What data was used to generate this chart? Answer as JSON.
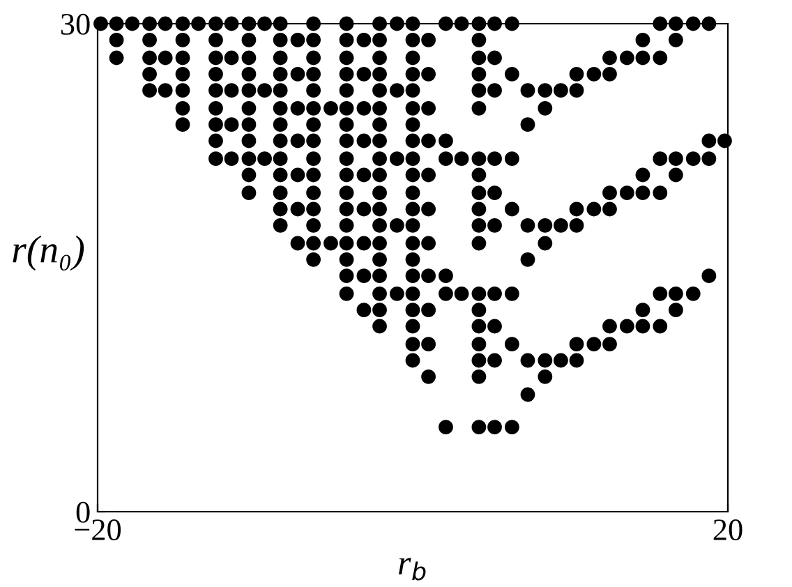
{
  "chart_data": {
    "type": "scatter",
    "xlabel": "r$_{b}$",
    "ylabel": "r(n₀)",
    "marker": "circle",
    "grid": false,
    "xlim": [
      -20,
      20
    ],
    "ylim": [
      0,
      30
    ],
    "xticks": [
      {
        "value": -20,
        "label": "−20"
      },
      20
    ],
    "yticks": [
      0,
      30
    ],
    "series": [
      {
        "color": "#000000",
        "x": [
          -19.8,
          -18.8,
          -17.8,
          -16.7,
          -15.7,
          -14.6,
          -13.6,
          -12.5,
          -11.5,
          -10.4,
          -9.4,
          -8.4,
          -6.3,
          -4.2,
          -2.1,
          -1.0,
          0.0,
          2.1,
          3.1,
          4.2,
          5.2,
          6.3,
          15.7,
          16.7,
          17.8,
          18.8
        ],
        "values": [
          30,
          30,
          30,
          30,
          30,
          30,
          30,
          30,
          30,
          30,
          30,
          30,
          30,
          30,
          30,
          30,
          30,
          30,
          30,
          30,
          30,
          30,
          30,
          30,
          30,
          30
        ]
      },
      {
        "color": "#000000",
        "x": [
          -18.8,
          -16.7,
          -14.6,
          -12.5,
          -10.4,
          -8.4,
          -7.3,
          -6.3,
          -4.2,
          -3.1,
          -2.1,
          0.0,
          1.0,
          4.2,
          14.6,
          16.7
        ],
        "values": [
          29.0,
          29.0,
          29.0,
          29.0,
          29.0,
          29.0,
          29.0,
          29.0,
          29.0,
          29.0,
          29.0,
          29.0,
          29.0,
          29.0,
          29.0,
          29.0
        ]
      },
      {
        "color": "#000000",
        "x": [
          -18.8,
          -16.7,
          -15.7,
          -14.6,
          -12.5,
          -11.5,
          -10.4,
          -8.4,
          -6.3,
          -4.2,
          -2.1,
          0.0,
          4.2,
          5.2,
          12.5,
          13.6,
          14.6,
          15.7
        ],
        "values": [
          27.9,
          27.9,
          27.9,
          27.9,
          27.9,
          27.9,
          27.9,
          27.9,
          27.9,
          27.9,
          27.9,
          27.9,
          27.9,
          27.9,
          27.9,
          27.9,
          27.9,
          27.9
        ]
      },
      {
        "color": "#000000",
        "x": [
          -16.7,
          -14.6,
          -12.5,
          -10.4,
          -8.4,
          -7.3,
          -6.3,
          -4.2,
          -3.1,
          -2.1,
          0.0,
          1.0,
          4.2,
          6.3,
          10.4,
          11.5,
          12.5
        ],
        "values": [
          26.9,
          26.9,
          26.9,
          26.9,
          26.9,
          26.9,
          26.9,
          26.9,
          26.9,
          26.9,
          26.9,
          26.9,
          26.9,
          26.9,
          26.9,
          26.9,
          26.9
        ]
      },
      {
        "color": "#000000",
        "x": [
          -16.7,
          -15.7,
          -14.6,
          -12.5,
          -11.5,
          -10.4,
          -9.4,
          -8.4,
          -6.3,
          -4.2,
          -2.1,
          -1.0,
          0.0,
          4.2,
          5.2,
          7.3,
          8.4,
          9.4,
          10.4
        ],
        "values": [
          25.9,
          25.9,
          25.9,
          25.9,
          25.9,
          25.9,
          25.9,
          25.9,
          25.9,
          25.9,
          25.9,
          25.9,
          25.9,
          25.9,
          25.9,
          25.9,
          25.9,
          25.9,
          25.9
        ]
      },
      {
        "color": "#000000",
        "x": [
          -14.6,
          -12.5,
          -10.4,
          -8.4,
          -7.3,
          -6.3,
          -5.2,
          -4.2,
          -3.1,
          -2.1,
          0.0,
          1.0,
          4.2,
          8.4
        ],
        "values": [
          24.8,
          24.8,
          24.8,
          24.8,
          24.8,
          24.8,
          24.8,
          24.8,
          24.8,
          24.8,
          24.8,
          24.8,
          24.8,
          24.8
        ]
      },
      {
        "color": "#000000",
        "x": [
          -14.6,
          -12.5,
          -11.5,
          -10.4,
          -8.4,
          -6.3,
          -4.2,
          -2.1,
          0.0,
          7.3
        ],
        "values": [
          23.8,
          23.8,
          23.8,
          23.8,
          23.8,
          23.8,
          23.8,
          23.8,
          23.8,
          23.8
        ]
      },
      {
        "color": "#000000",
        "x": [
          -12.5,
          -10.4,
          -8.4,
          -7.3,
          -6.3,
          -4.2,
          -3.1,
          -2.1,
          0.0,
          1.0,
          2.1,
          18.8,
          19.8
        ],
        "values": [
          22.8,
          22.8,
          22.8,
          22.8,
          22.8,
          22.8,
          22.8,
          22.8,
          22.8,
          22.8,
          22.8,
          22.8,
          22.8
        ]
      },
      {
        "color": "#000000",
        "x": [
          -12.5,
          -11.5,
          -10.4,
          -9.4,
          -8.4,
          -6.3,
          -4.2,
          -2.1,
          -1.0,
          0.0,
          2.1,
          3.1,
          4.2,
          5.2,
          6.3,
          15.7,
          16.7,
          17.8,
          18.8
        ],
        "values": [
          21.7,
          21.7,
          21.7,
          21.7,
          21.7,
          21.7,
          21.7,
          21.7,
          21.7,
          21.7,
          21.7,
          21.7,
          21.7,
          21.7,
          21.7,
          21.7,
          21.7,
          21.7,
          21.7
        ]
      },
      {
        "color": "#000000",
        "x": [
          -10.4,
          -8.4,
          -7.3,
          -6.3,
          -4.2,
          -3.1,
          -2.1,
          0.0,
          1.0,
          4.2,
          14.6,
          16.7
        ],
        "values": [
          20.7,
          20.7,
          20.7,
          20.7,
          20.7,
          20.7,
          20.7,
          20.7,
          20.7,
          20.7,
          20.7,
          20.7
        ]
      },
      {
        "color": "#000000",
        "x": [
          -10.4,
          -8.4,
          -6.3,
          -4.2,
          -2.1,
          0.0,
          4.2,
          5.2,
          12.5,
          13.6,
          14.6,
          15.7
        ],
        "values": [
          19.6,
          19.6,
          19.6,
          19.6,
          19.6,
          19.6,
          19.6,
          19.6,
          19.6,
          19.6,
          19.6,
          19.6
        ]
      },
      {
        "color": "#000000",
        "x": [
          -8.4,
          -7.3,
          -6.3,
          -4.2,
          -3.1,
          -2.1,
          0.0,
          1.0,
          4.2,
          6.3,
          10.4,
          11.5,
          12.5
        ],
        "values": [
          18.6,
          18.6,
          18.6,
          18.6,
          18.6,
          18.6,
          18.6,
          18.6,
          18.6,
          18.6,
          18.6,
          18.6,
          18.6
        ]
      },
      {
        "color": "#000000",
        "x": [
          -8.4,
          -6.3,
          -4.2,
          -2.1,
          -1.0,
          0.0,
          4.2,
          5.2,
          7.3,
          8.4,
          9.4,
          10.4
        ],
        "values": [
          17.6,
          17.6,
          17.6,
          17.6,
          17.6,
          17.6,
          17.6,
          17.6,
          17.6,
          17.6,
          17.6,
          17.6
        ]
      },
      {
        "color": "#000000",
        "x": [
          -7.3,
          -6.3,
          -5.2,
          -4.2,
          -3.1,
          -2.1,
          0.0,
          1.0,
          4.2,
          8.4
        ],
        "values": [
          16.5,
          16.5,
          16.5,
          16.5,
          16.5,
          16.5,
          16.5,
          16.5,
          16.5,
          16.5
        ]
      },
      {
        "color": "#000000",
        "x": [
          -6.3,
          -4.2,
          -2.1,
          0.0,
          7.3
        ],
        "values": [
          15.5,
          15.5,
          15.5,
          15.5,
          15.5
        ]
      },
      {
        "color": "#000000",
        "x": [
          -4.2,
          -3.1,
          -2.1,
          0.0,
          1.0,
          2.1,
          18.8
        ],
        "values": [
          14.5,
          14.5,
          14.5,
          14.5,
          14.5,
          14.5,
          14.5
        ]
      },
      {
        "color": "#000000",
        "x": [
          -4.2,
          -2.1,
          -1.0,
          0.0,
          2.1,
          3.1,
          4.2,
          5.2,
          6.3,
          15.7,
          16.7,
          17.8
        ],
        "values": [
          13.4,
          13.4,
          13.4,
          13.4,
          13.4,
          13.4,
          13.4,
          13.4,
          13.4,
          13.4,
          13.4,
          13.4
        ]
      },
      {
        "color": "#000000",
        "x": [
          -3.1,
          -2.1,
          0.0,
          1.0,
          4.2,
          14.6,
          16.7
        ],
        "values": [
          12.4,
          12.4,
          12.4,
          12.4,
          12.4,
          12.4,
          12.4
        ]
      },
      {
        "color": "#000000",
        "x": [
          -2.1,
          0.0,
          4.2,
          5.2,
          12.5,
          13.6,
          14.6,
          15.7
        ],
        "values": [
          11.4,
          11.4,
          11.4,
          11.4,
          11.4,
          11.4,
          11.4,
          11.4
        ]
      },
      {
        "color": "#000000",
        "x": [
          0.0,
          1.0,
          4.2,
          6.3,
          10.4,
          11.5,
          12.5
        ],
        "values": [
          10.3,
          10.3,
          10.3,
          10.3,
          10.3,
          10.3,
          10.3
        ]
      },
      {
        "color": "#000000",
        "x": [
          0.0,
          4.2,
          5.2,
          7.3,
          8.4,
          9.4,
          10.4
        ],
        "values": [
          9.3,
          9.3,
          9.3,
          9.3,
          9.3,
          9.3,
          9.3
        ]
      },
      {
        "color": "#000000",
        "x": [
          1.0,
          4.2,
          8.4
        ],
        "values": [
          8.3,
          8.3,
          8.3
        ]
      },
      {
        "color": "#000000",
        "x": [
          7.3
        ],
        "values": [
          7.2
        ]
      },
      {
        "color": "#000000",
        "x": [
          2.1,
          4.2,
          5.2,
          6.3
        ],
        "values": [
          5.2,
          5.2,
          5.2,
          5.2
        ]
      }
    ]
  }
}
